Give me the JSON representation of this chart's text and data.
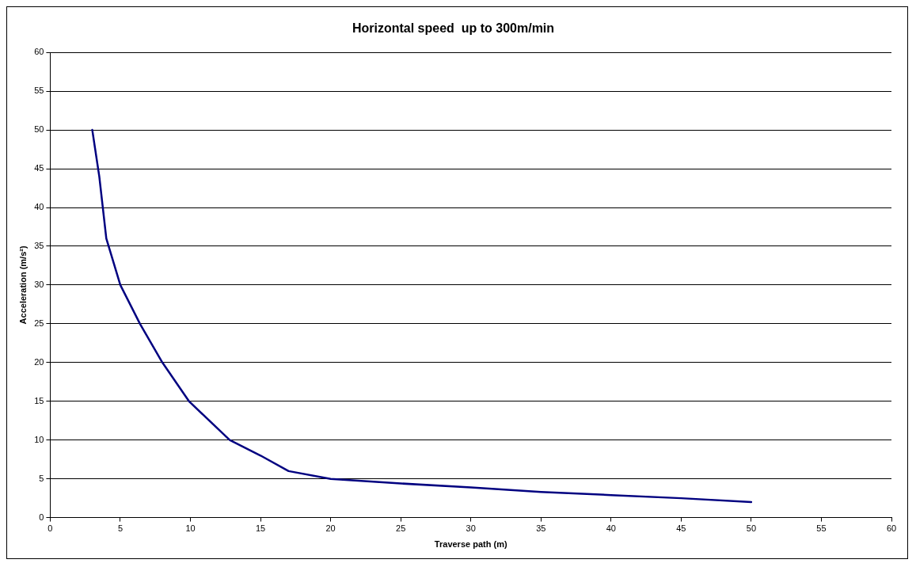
{
  "chart_data": {
    "type": "line",
    "title": "Horizontal speed  up to 300m/min",
    "xlabel": "Traverse path (m)",
    "ylabel": "Acceleration (m/s²)",
    "x": [
      3,
      3.5,
      4,
      5,
      6.4,
      8,
      9.9,
      12.8,
      15,
      17,
      20,
      25,
      30,
      35,
      40,
      45,
      50
    ],
    "series": [
      {
        "color": "#000080",
        "values": [
          50,
          44,
          36,
          30,
          25,
          20,
          15,
          10,
          8,
          6,
          5,
          4.4,
          3.9,
          3.3,
          2.9,
          2.5,
          2
        ]
      }
    ],
    "xlim": [
      0,
      60
    ],
    "xticks": [
      0,
      5,
      10,
      15,
      20,
      25,
      30,
      35,
      40,
      45,
      50,
      55,
      60
    ],
    "ylim": [
      0,
      60
    ],
    "yticks": [
      0,
      5,
      10,
      15,
      20,
      25,
      30,
      35,
      40,
      45,
      50,
      55,
      60
    ],
    "grid": "y",
    "legend": false,
    "marker": "none",
    "line_style": "solid"
  }
}
